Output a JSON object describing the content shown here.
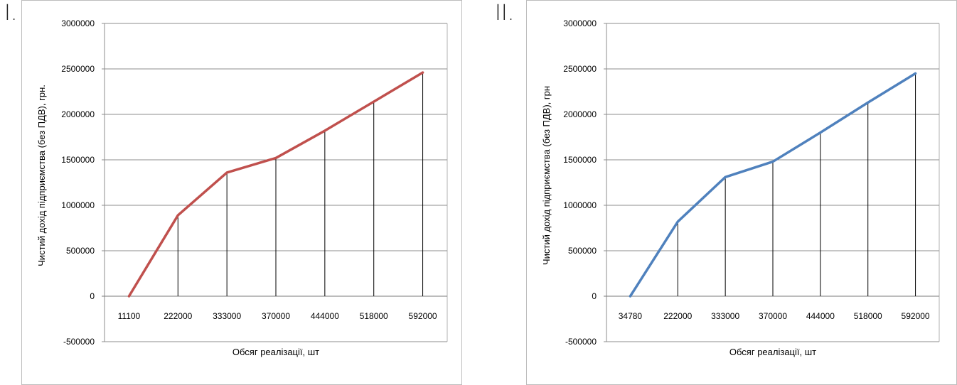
{
  "labels": [
    "I.",
    "II."
  ],
  "colors": {
    "chart1": "#c0504d",
    "chart2": "#4f81bd"
  },
  "chart_data": [
    {
      "type": "line",
      "categories": [
        "11100",
        "222000",
        "333000",
        "370000",
        "444000",
        "518000",
        "592000"
      ],
      "series": [
        {
          "values": [
            0,
            890000,
            1360000,
            1520000,
            1820000,
            2140000,
            2460000
          ]
        }
      ],
      "xlabel": "Обсяг реалізації, шт",
      "ylabel": "Чистий дохід підприємства (без ПДВ),  грн.",
      "yticks": [
        "3000000",
        "2500000",
        "2000000",
        "1500000",
        "1000000",
        "500000",
        "0",
        "-500000"
      ],
      "ylim": [
        -500000,
        3000000
      ],
      "drop_lines": true,
      "grid": true
    },
    {
      "type": "line",
      "categories": [
        "34780",
        "222000",
        "333000",
        "370000",
        "444000",
        "518000",
        "592000"
      ],
      "series": [
        {
          "values": [
            0,
            820000,
            1310000,
            1480000,
            1800000,
            2130000,
            2450000
          ]
        }
      ],
      "xlabel": "Обсяг реалізації, шт",
      "ylabel": "Чистий дохід підприємства (без ПДВ),  грн",
      "yticks": [
        "3000000",
        "2500000",
        "2000000",
        "1500000",
        "1000000",
        "500000",
        "0",
        "-500000"
      ],
      "ylim": [
        -500000,
        3000000
      ],
      "drop_lines": true,
      "grid": true
    }
  ]
}
